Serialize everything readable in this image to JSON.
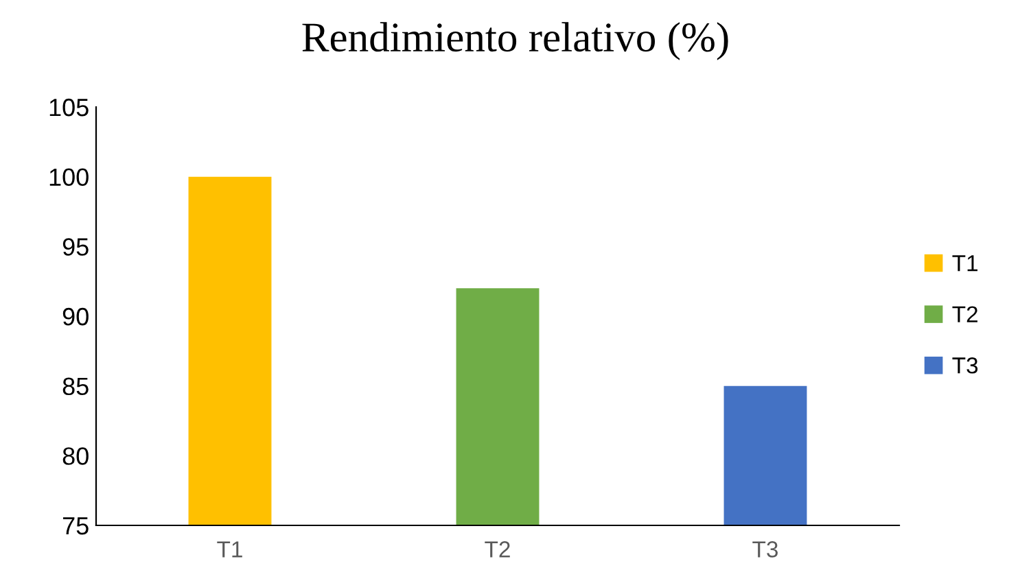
{
  "chart_data": {
    "type": "bar",
    "title": "Rendimiento relativo (%)",
    "categories": [
      "T1",
      "T2",
      "T3"
    ],
    "series": [
      {
        "name": "T1",
        "color": "#ffc000",
        "values": [
          100,
          null,
          null
        ]
      },
      {
        "name": "T2",
        "color": "#70ad47",
        "values": [
          null,
          92,
          null
        ]
      },
      {
        "name": "T3",
        "color": "#4472c4",
        "values": [
          null,
          null,
          85
        ]
      }
    ],
    "ylim": [
      75,
      105
    ],
    "yticks": [
      75,
      80,
      85,
      90,
      95,
      100,
      105
    ],
    "grid": false,
    "legend": "right"
  }
}
